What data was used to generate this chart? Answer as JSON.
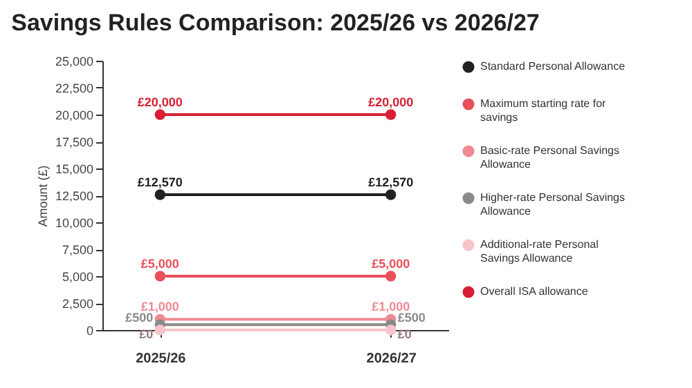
{
  "chart_data": {
    "type": "line",
    "title": "Savings Rules Comparison: 2025/26 vs 2026/27",
    "ylabel": "Amount (£)",
    "categories": [
      "2025/26",
      "2026/27"
    ],
    "series": [
      {
        "name": "Standard Personal Allowance",
        "color": "#222222",
        "values": [
          12570,
          12570
        ],
        "value_labels": [
          "£12,570",
          "£12,570"
        ]
      },
      {
        "name": "Maximum starting rate for savings",
        "color": "#e8505b",
        "values": [
          5000,
          5000
        ],
        "value_labels": [
          "£5,000",
          "£5,000"
        ]
      },
      {
        "name": "Basic-rate Personal Savings Allowance",
        "color": "#f08a93",
        "values": [
          1000,
          1000
        ],
        "value_labels": [
          "£1,000",
          "£1,000"
        ]
      },
      {
        "name": "Higher-rate Personal Savings Allowance",
        "color": "#8a8a8a",
        "values": [
          500,
          500
        ],
        "value_labels": [
          "£500",
          "£500"
        ]
      },
      {
        "name": "Additional-rate Personal Savings Allowance",
        "color": "#f7c5ca",
        "values": [
          0,
          0
        ],
        "value_labels": [
          "£0",
          "£0"
        ]
      },
      {
        "name": "Overall ISA allowance",
        "color": "#d81e34",
        "values": [
          20000,
          20000
        ],
        "value_labels": [
          "£20,000",
          "£20,000"
        ]
      }
    ],
    "ylim": [
      0,
      25000
    ],
    "yticks": [
      0,
      {
        "value": 2500,
        "label": "2,500"
      },
      {
        "value": 5000,
        "label": "5,000"
      },
      {
        "value": 7500,
        "label": "7,500"
      },
      {
        "value": 10000,
        "label": "10,000"
      },
      {
        "value": 12500,
        "label": "12,500"
      },
      {
        "value": 15000,
        "label": "15,000"
      },
      {
        "value": 17500,
        "label": "17,500"
      },
      {
        "value": 20000,
        "label": "20,000"
      },
      {
        "value": 22500,
        "label": "22,500"
      },
      {
        "value": 25000,
        "label": "25,000"
      }
    ],
    "grid": false,
    "legend": "right",
    "marker": "circle",
    "line_style": "solid"
  }
}
